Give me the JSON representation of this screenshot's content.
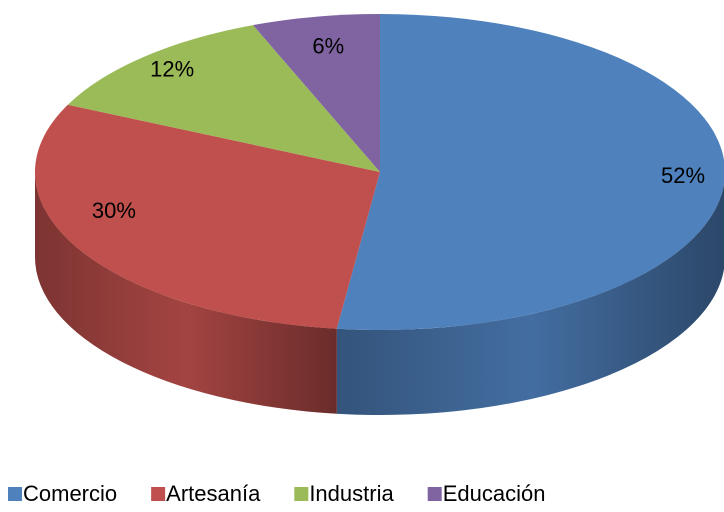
{
  "chart_data": {
    "type": "pie",
    "categories": [
      "Comercio",
      "Artesanía",
      "Industria",
      "Educación"
    ],
    "values": [
      52,
      30,
      12,
      6
    ],
    "value_labels": [
      "52%",
      "30%",
      "12%",
      "6%"
    ],
    "colors": [
      "#4f81bd",
      "#c0504d",
      "#9bbb59",
      "#8064a2"
    ],
    "legend": "bottom"
  }
}
